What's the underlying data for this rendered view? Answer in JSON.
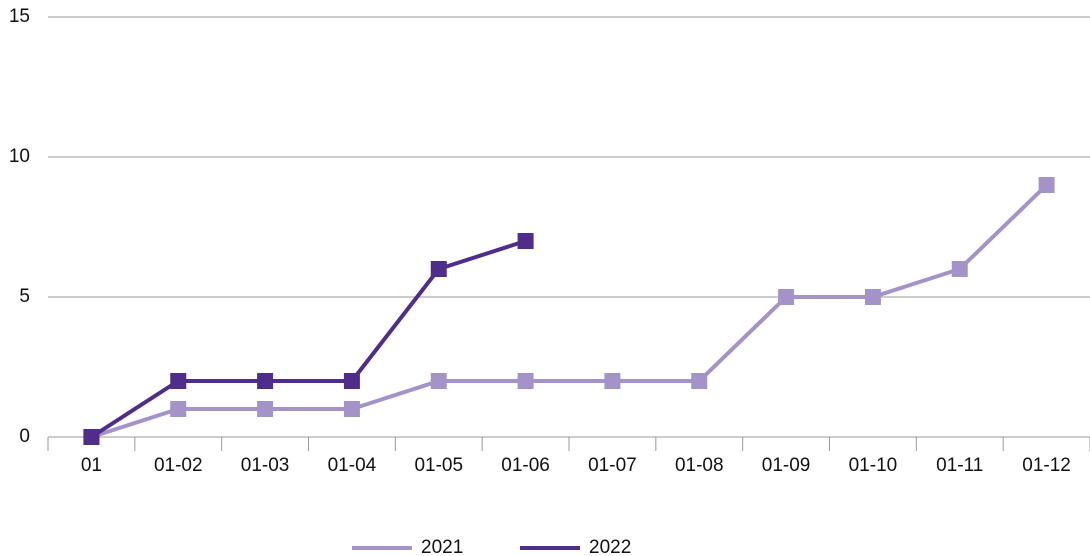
{
  "chart_data": {
    "type": "line",
    "categories": [
      "01",
      "01-02",
      "01-03",
      "01-04",
      "01-05",
      "01-06",
      "01-07",
      "01-08",
      "01-09",
      "01-10",
      "01-11",
      "01-12"
    ],
    "series": [
      {
        "name": "2021",
        "color": "#a393c8",
        "values": [
          0,
          1,
          1,
          1,
          2,
          2,
          2,
          2,
          5,
          5,
          6,
          9
        ]
      },
      {
        "name": "2022",
        "color": "#4f2d8a",
        "values": [
          0,
          2,
          2,
          2,
          6,
          7,
          null,
          null,
          null,
          null,
          null,
          null
        ]
      }
    ],
    "ylim": [
      0,
      15
    ],
    "yticks": [
      0,
      5,
      10,
      15
    ],
    "grid": true,
    "legend": "bottom"
  }
}
